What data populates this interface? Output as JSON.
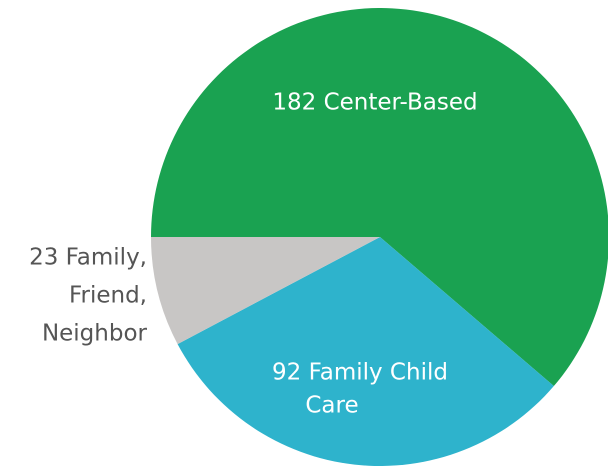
{
  "chart_data": {
    "type": "pie",
    "values": [
      182,
      92,
      23
    ],
    "value_labels": [
      [
        "182 Center-Based"
      ],
      [
        "92 Family Child",
        "Care"
      ],
      [
        "23 Family,",
        "Friend,",
        "Neighbor"
      ]
    ],
    "colors": [
      "#1aa251",
      "#2eb3cc",
      "#c8c6c5"
    ]
  }
}
